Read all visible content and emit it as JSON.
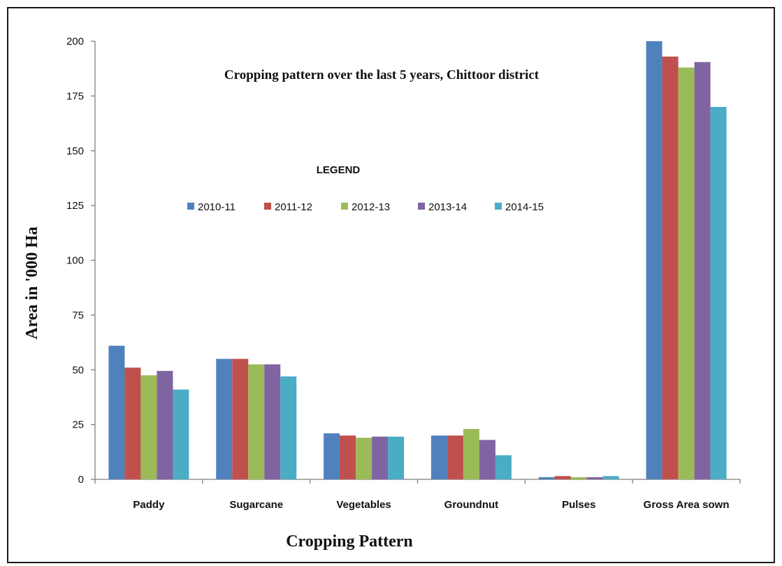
{
  "chart_data": {
    "type": "bar",
    "title": "Cropping pattern over the last 5 years, Chittoor district",
    "xlabel": "Cropping Pattern",
    "ylabel": "Area in '000 Ha",
    "legend_title": "LEGEND",
    "legend_position": "inside-top-center",
    "grid": false,
    "ylim": [
      0,
      200
    ],
    "yticks": [
      0,
      25,
      50,
      75,
      100,
      125,
      150,
      175,
      200
    ],
    "ytick_labels": [
      "0",
      "25",
      "50",
      "75",
      "100",
      "125",
      "150",
      "175",
      "200"
    ],
    "categories": [
      "Paddy",
      "Sugarcane",
      "Vegetables",
      "Groundnut",
      "Pulses",
      "Gross Area sown"
    ],
    "series": [
      {
        "name": "2010-11",
        "color": "#4f81bd",
        "values": [
          61,
          55,
          21,
          20,
          1,
          200
        ]
      },
      {
        "name": "2011-12",
        "color": "#c0504d",
        "values": [
          51,
          55,
          20,
          20,
          1.5,
          193
        ]
      },
      {
        "name": "2012-13",
        "color": "#9bbb59",
        "values": [
          47.5,
          52.5,
          19,
          23,
          1,
          188
        ]
      },
      {
        "name": "2013-14",
        "color": "#8064a2",
        "values": [
          49.5,
          52.5,
          19.5,
          18,
          1,
          190.5
        ]
      },
      {
        "name": "2014-15",
        "color": "#4bacc6",
        "values": [
          41,
          47,
          19.5,
          11,
          1.5,
          170
        ]
      }
    ]
  }
}
